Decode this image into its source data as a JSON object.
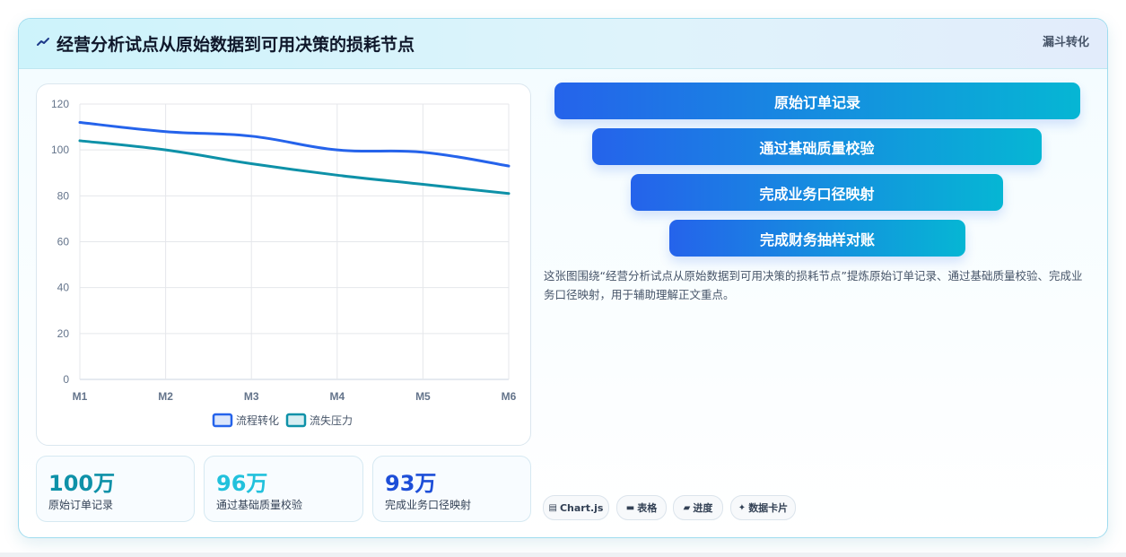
{
  "header": {
    "title": "经营分析试点从原始数据到可用决策的损耗节点",
    "badge": "漏斗转化",
    "icon": "sparkline-icon"
  },
  "chart_data": {
    "type": "line",
    "x": [
      "M1",
      "M2",
      "M3",
      "M4",
      "M5",
      "M6"
    ],
    "yticks": [
      0,
      20,
      40,
      60,
      80,
      100,
      120
    ],
    "ylim": [
      0,
      120
    ],
    "grid": true,
    "legend_position": "bottom",
    "series": [
      {
        "name": "流程转化",
        "values": [
          112,
          108,
          106,
          100,
          99,
          93
        ],
        "color": "#2563eb"
      },
      {
        "name": "流失压力",
        "values": [
          104,
          100,
          94,
          89,
          85,
          81
        ],
        "color": "#0e91a8"
      }
    ]
  },
  "stats": [
    {
      "value": "100万",
      "label": "原始订单记录",
      "color": "#0e91a8"
    },
    {
      "value": "96万",
      "label": "通过基础质量校验",
      "color": "#22c1dc"
    },
    {
      "value": "93万",
      "label": "完成业务口径映射",
      "color": "#1d4ed8"
    }
  ],
  "funnel": {
    "steps": [
      "原始订单记录",
      "通过基础质量校验",
      "完成业务口径映射",
      "完成财务抽样对账"
    ]
  },
  "description": "这张图围绕“经营分析试点从原始数据到可用决策的损耗节点”提炼原始订单记录、通过基础质量校验、完成业务口径映射，用于辅助理解正文重点。",
  "chips": [
    {
      "icon": "chart-icon",
      "glyph": "▤",
      "label": "Chart.js"
    },
    {
      "icon": "table-icon",
      "glyph": "▬",
      "label": "表格"
    },
    {
      "icon": "progress-icon",
      "glyph": "▰",
      "label": "进度"
    },
    {
      "icon": "sparkle-icon",
      "glyph": "✦",
      "label": "数据卡片"
    }
  ]
}
